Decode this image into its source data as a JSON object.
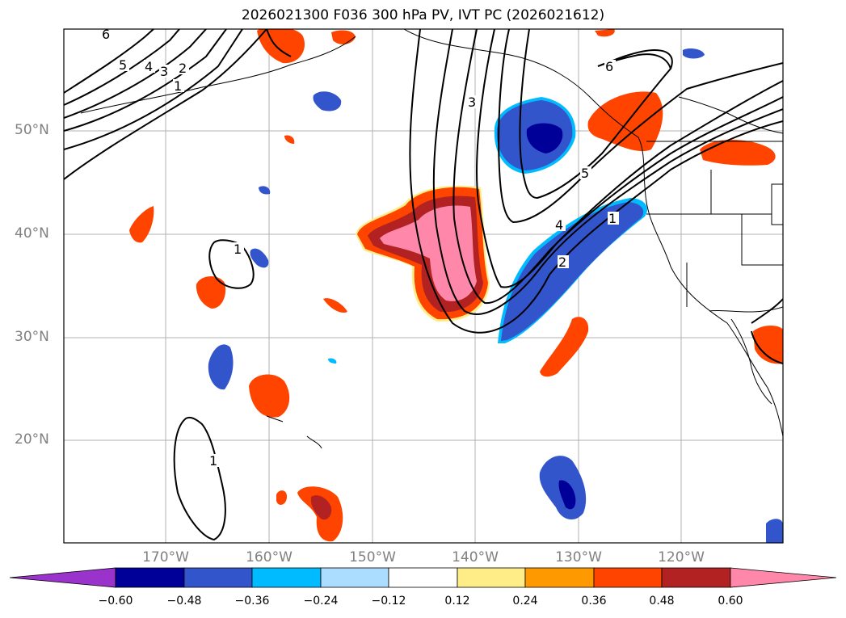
{
  "title": "2026021300 F036 300 hPa PV, IVT PC (2026021612)",
  "lat_labels": [
    "50°N",
    "40°N",
    "30°N",
    "20°N"
  ],
  "lon_labels": [
    "170°W",
    "160°W",
    "150°W",
    "140°W",
    "130°W",
    "120°W"
  ],
  "contour_labels": [
    "6",
    "5",
    "4",
    "3",
    "2",
    "1",
    "3",
    "6",
    "5",
    "4",
    "2",
    "1",
    "1",
    "1"
  ],
  "colorbar": {
    "ticks": [
      "−0.60",
      "−0.48",
      "−0.36",
      "−0.24",
      "−0.12",
      "0.12",
      "0.24",
      "0.36",
      "0.48",
      "0.60"
    ],
    "colors": [
      "#9933cc",
      "#000099",
      "#3355cc",
      "#00bbff",
      "#aaddff",
      "#ffffff",
      "#ffee88",
      "#ff9900",
      "#ff4400",
      "#b22222",
      "#ff88aa"
    ]
  }
}
